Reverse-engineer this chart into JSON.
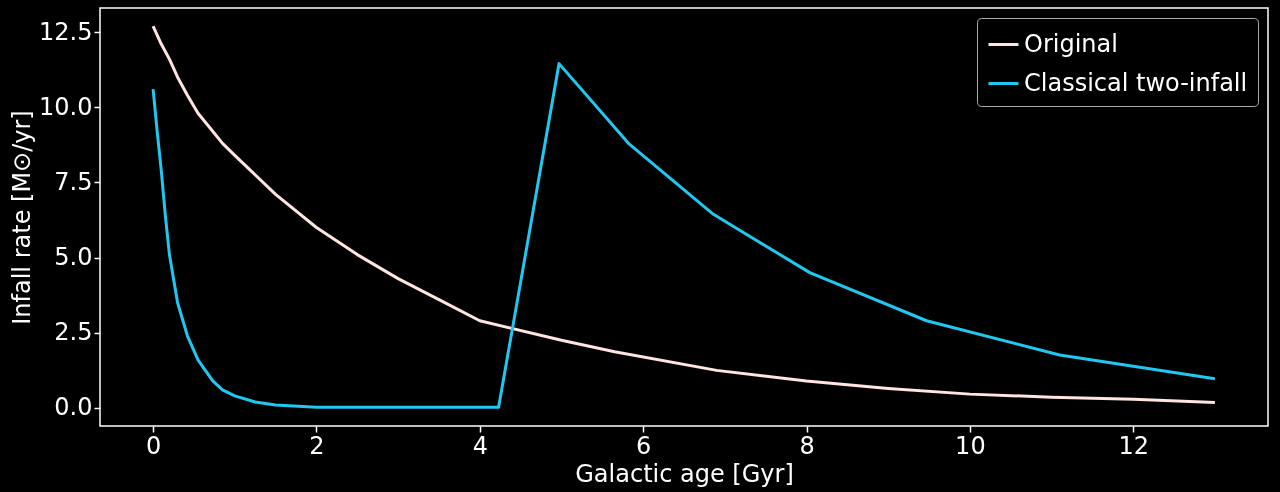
{
  "chart_data": {
    "type": "line",
    "xlabel": "Galactic age [Gyr]",
    "ylabel": "Infall rate [M⊙/yr]",
    "xlim": [
      -0.65,
      13.65
    ],
    "ylim": [
      -0.6,
      13.3
    ],
    "xticks": [
      0,
      2,
      4,
      6,
      8,
      10,
      12
    ],
    "yticks": [
      {
        "value": 0,
        "label": "0.0"
      },
      {
        "value": 2.5,
        "label": "2.5"
      },
      {
        "value": 5,
        "label": "5.0"
      },
      {
        "value": 7.5,
        "label": "7.5"
      },
      {
        "value": 10,
        "label": "10.0"
      },
      {
        "value": 12.5,
        "label": "12.5"
      }
    ],
    "grid": false,
    "legend": "top right",
    "marker": "none",
    "line_style": "solid",
    "series": [
      {
        "name": "Original",
        "color": "#ffe4e1",
        "x": [
          0,
          0.1,
          0.2,
          0.3,
          0.42,
          0.55,
          0.7,
          0.85,
          1,
          1.5,
          2,
          2.5,
          3,
          3.5,
          4,
          5,
          5.65,
          6.9,
          8,
          9,
          10,
          11,
          12,
          13
        ],
        "values": [
          12.7,
          12.1,
          11.6,
          11.0,
          10.4,
          9.8,
          9.3,
          8.8,
          8.4,
          7.1,
          6.0,
          5.1,
          4.3,
          3.6,
          2.9,
          2.25,
          1.87,
          1.25,
          0.9,
          0.65,
          0.46,
          0.36,
          0.29,
          0.18
        ]
      },
      {
        "name": "Classical two-infall",
        "color": "#1ec8f0",
        "x": [
          0,
          0.05,
          0.1,
          0.15,
          0.2,
          0.3,
          0.42,
          0.55,
          0.73,
          0.85,
          1.0,
          1.25,
          1.5,
          2,
          4.23,
          4.97,
          5.82,
          6.86,
          8.04,
          9.47,
          11.1,
          13.0
        ],
        "values": [
          10.6,
          9.2,
          7.9,
          6.4,
          5.1,
          3.5,
          2.4,
          1.6,
          0.9,
          0.6,
          0.4,
          0.2,
          0.1,
          0.02,
          0.02,
          11.45,
          8.8,
          6.44,
          4.5,
          2.9,
          1.76,
          0.97
        ]
      }
    ]
  }
}
